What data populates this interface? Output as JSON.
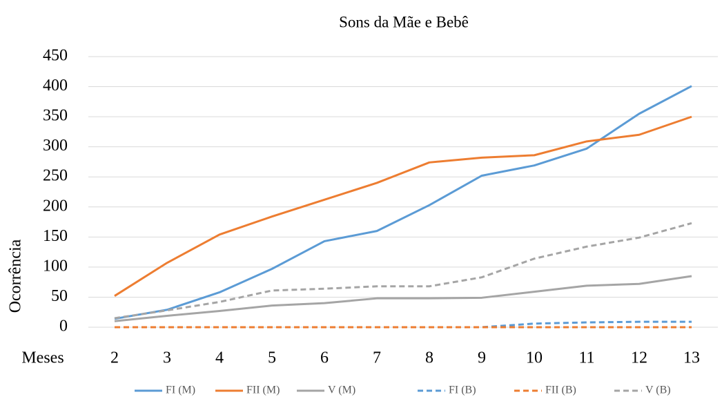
{
  "chart_data": {
    "type": "line",
    "title": "Sons da Mãe e Bebê",
    "x_label": "Meses",
    "y_label": "Ocorrência",
    "categories": [
      "2",
      "3",
      "4",
      "5",
      "6",
      "7",
      "8",
      "9",
      "10",
      "11",
      "12",
      "13"
    ],
    "ylim": [
      0,
      450
    ],
    "yticks": [
      0,
      50,
      100,
      150,
      200,
      250,
      300,
      350,
      400,
      450
    ],
    "grid": true,
    "legend": "bottom",
    "series": [
      {
        "name": "FI (M)",
        "color": "#5b9bd5",
        "dashed": false,
        "values": [
          14,
          29,
          58,
          97,
          143,
          160,
          203,
          252,
          269,
          297,
          355,
          401
        ]
      },
      {
        "name": "FII (M)",
        "color": "#ed7d31",
        "dashed": false,
        "values": [
          52,
          107,
          154,
          184,
          212,
          240,
          274,
          282,
          286,
          309,
          320,
          350
        ]
      },
      {
        "name": "V (M)",
        "color": "#a5a5a5",
        "dashed": false,
        "values": [
          10,
          19,
          27,
          36,
          40,
          48,
          48,
          49,
          59,
          69,
          72,
          85
        ]
      },
      {
        "name": "FI (B)",
        "color": "#5b9bd5",
        "dashed": true,
        "values": [
          0,
          0,
          0,
          0,
          0,
          0,
          0,
          0,
          6,
          8,
          9,
          9
        ]
      },
      {
        "name": "FII (B)",
        "color": "#ed7d31",
        "dashed": true,
        "values": [
          0,
          0,
          0,
          0,
          0,
          0,
          0,
          0,
          0,
          0,
          0,
          0
        ]
      },
      {
        "name": "V (B)",
        "color": "#a5a5a5",
        "dashed": true,
        "values": [
          15,
          28,
          42,
          61,
          64,
          68,
          68,
          83,
          114,
          134,
          149,
          173
        ]
      }
    ]
  }
}
